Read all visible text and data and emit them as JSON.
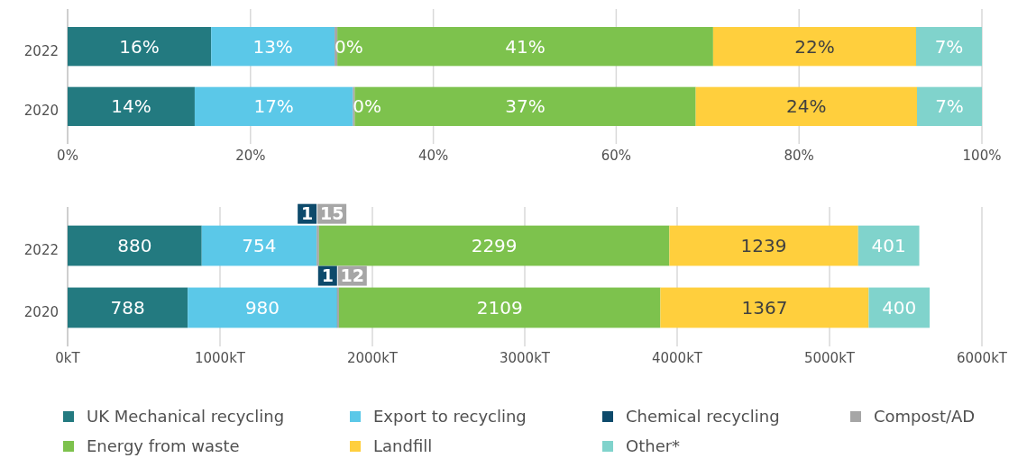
{
  "chart_data": [
    {
      "type": "bar",
      "orientation": "horizontal",
      "stacked": true,
      "categories": [
        "2022",
        "2020"
      ],
      "xlim": [
        0,
        100
      ],
      "xticks": [
        {
          "value": 0,
          "label": "0%"
        },
        {
          "value": 20,
          "label": "20%"
        },
        {
          "value": 40,
          "label": "40%"
        },
        {
          "value": 60,
          "label": "60%"
        },
        {
          "value": 80,
          "label": "80%"
        },
        {
          "value": 100,
          "label": "100%"
        }
      ],
      "grid": "x",
      "legend": false,
      "series": [
        {
          "color": "#237a80",
          "values": [
            15.7,
            13.9
          ],
          "value_labels": [
            "16%",
            "14%"
          ]
        },
        {
          "color": "#5bc8e8",
          "values": [
            13.5,
            17.3
          ],
          "value_labels": [
            "13%",
            "17%"
          ]
        },
        {
          "color": "#0d4a6b",
          "values": [
            0.0,
            0.0
          ],
          "value_labels": [
            null,
            null
          ]
        },
        {
          "color": "#a6a6a6",
          "values": [
            0.3,
            0.2
          ],
          "value_labels": [
            "0%",
            "0%"
          ]
        },
        {
          "color": "#7dc24d",
          "values": [
            41.1,
            37.3
          ],
          "value_labels": [
            "41%",
            "37%"
          ]
        },
        {
          "color": "#ffcf3d",
          "values": [
            22.2,
            24.2
          ],
          "value_labels": [
            "22%",
            "24%"
          ]
        },
        {
          "color": "#80d3cc",
          "values": [
            7.2,
            7.1
          ],
          "value_labels": [
            "7%",
            "7%"
          ]
        }
      ]
    },
    {
      "type": "bar",
      "orientation": "horizontal",
      "stacked": true,
      "categories": [
        "2022",
        "2020"
      ],
      "xlim": [
        0,
        6000
      ],
      "xticks": [
        {
          "value": 0,
          "label": "0kT"
        },
        {
          "value": 1000,
          "label": "1000kT"
        },
        {
          "value": 2000,
          "label": "2000kT"
        },
        {
          "value": 3000,
          "label": "3000kT"
        },
        {
          "value": 4000,
          "label": "4000kT"
        },
        {
          "value": 5000,
          "label": "5000kT"
        },
        {
          "value": 6000,
          "label": "6000kT"
        }
      ],
      "grid": "x",
      "legend": "bottom",
      "data_labels": true,
      "series": [
        {
          "name": "UK Mechanical recycling",
          "color": "#237a80",
          "values": [
            880,
            788
          ]
        },
        {
          "name": "Export to recycling",
          "color": "#5bc8e8",
          "values": [
            754,
            980
          ]
        },
        {
          "name": "Chemical recycling",
          "color": "#0d4a6b",
          "values": [
            1,
            1
          ]
        },
        {
          "name": "Compost/AD",
          "color": "#a6a6a6",
          "values": [
            15,
            12
          ]
        },
        {
          "name": "Energy from waste",
          "color": "#7dc24d",
          "values": [
            2299,
            2109
          ]
        },
        {
          "name": "Landfill",
          "color": "#ffcf3d",
          "values": [
            1239,
            1367
          ]
        },
        {
          "name": "Other*",
          "color": "#80d3cc",
          "values": [
            401,
            400
          ]
        }
      ]
    }
  ]
}
